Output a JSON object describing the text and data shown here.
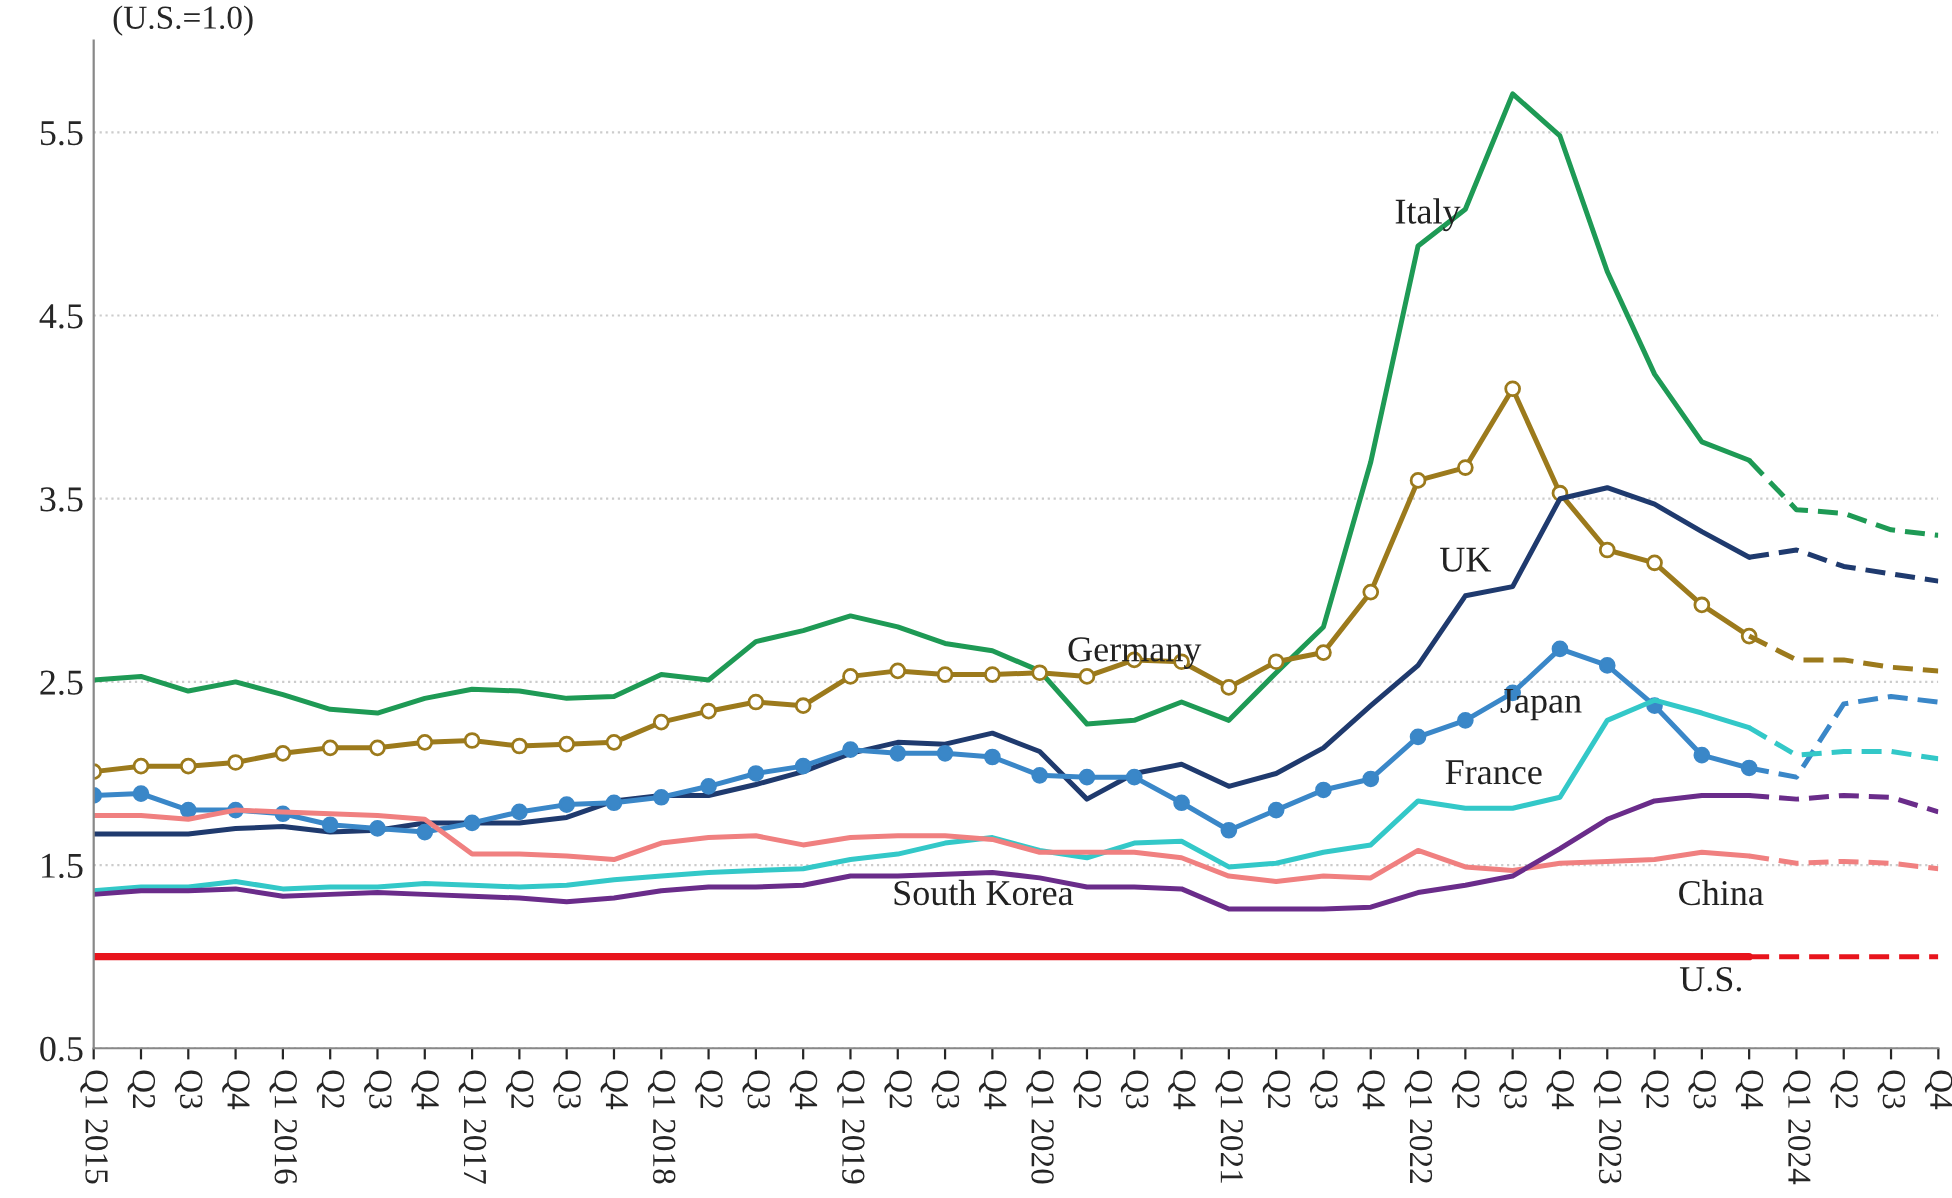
{
  "chart_data": {
    "type": "line",
    "ylabel": "(U.S.=1.0)",
    "categories": [
      "Q1 2015",
      "Q2",
      "Q3",
      "Q4",
      "Q1 2016",
      "Q2",
      "Q3",
      "Q4",
      "Q1 2017",
      "Q2",
      "Q3",
      "Q4",
      "Q1 2018",
      "Q2",
      "Q3",
      "Q4",
      "Q1 2019",
      "Q2",
      "Q3",
      "Q4",
      "Q1 2020",
      "Q2",
      "Q3",
      "Q4",
      "Q1 2021",
      "Q2",
      "Q3",
      "Q4",
      "Q1 2022",
      "Q2",
      "Q3",
      "Q4",
      "Q1 2023",
      "Q2",
      "Q3",
      "Q4",
      "Q1 2024",
      "Q2",
      "Q3",
      "Q4"
    ],
    "ylim": [
      0.5,
      6.0
    ],
    "yticks": [
      0.5,
      1.5,
      2.5,
      3.5,
      4.5,
      5.5
    ],
    "grid": "y",
    "legend": false,
    "series": [
      {
        "name": "Italy",
        "color": "#1e9a55",
        "marker": "none",
        "line_style": "solid",
        "values": [
          2.51,
          2.53,
          2.45,
          2.5,
          2.43,
          2.35,
          2.33,
          2.41,
          2.46,
          2.45,
          2.41,
          2.42,
          2.54,
          2.51,
          2.72,
          2.78,
          2.86,
          2.8,
          2.71,
          2.67,
          2.56,
          2.27,
          2.29,
          2.39,
          2.29,
          2.55,
          2.8,
          3.7,
          4.88,
          5.08,
          5.71,
          5.48,
          4.74,
          4.18,
          3.81,
          3.71,
          null,
          null,
          null,
          null
        ]
      },
      {
        "name": "Germany",
        "color": "#9c7a1c",
        "marker": "circle",
        "line_style": "solid",
        "values": [
          2.01,
          2.04,
          2.04,
          2.06,
          2.11,
          2.14,
          2.14,
          2.17,
          2.18,
          2.15,
          2.16,
          2.17,
          2.28,
          2.34,
          2.39,
          2.37,
          2.53,
          2.56,
          2.54,
          2.54,
          2.55,
          2.53,
          2.62,
          2.61,
          2.47,
          2.61,
          2.66,
          2.99,
          3.6,
          3.67,
          4.1,
          3.53,
          3.22,
          3.15,
          2.92,
          2.75,
          null,
          null,
          null,
          null
        ]
      },
      {
        "name": "UK",
        "color": "#1f3a6e",
        "marker": "none",
        "line_style": "solid",
        "values": [
          1.67,
          1.67,
          1.67,
          1.7,
          1.71,
          1.68,
          1.69,
          1.73,
          1.73,
          1.73,
          1.76,
          1.85,
          1.88,
          1.88,
          1.94,
          2.01,
          2.11,
          2.17,
          2.16,
          2.22,
          2.12,
          1.86,
          2.0,
          2.05,
          1.93,
          2.0,
          2.14,
          2.37,
          2.59,
          2.97,
          3.02,
          3.5,
          3.56,
          3.47,
          3.32,
          3.18,
          null,
          null,
          null,
          null
        ]
      },
      {
        "name": "Japan",
        "color": "#3a87c8",
        "marker": "circle",
        "line_style": "solid",
        "values": [
          1.88,
          1.89,
          1.8,
          1.8,
          1.78,
          1.72,
          1.7,
          1.68,
          1.73,
          1.79,
          1.83,
          1.84,
          1.87,
          1.93,
          2.0,
          2.04,
          2.13,
          2.11,
          2.11,
          2.09,
          1.99,
          1.98,
          1.98,
          1.84,
          1.69,
          1.8,
          1.91,
          1.97,
          2.2,
          2.29,
          2.44,
          2.68,
          2.59,
          2.37,
          2.1,
          2.03,
          null,
          null,
          null,
          null
        ]
      },
      {
        "name": "France",
        "color": "#33c8c8",
        "marker": "none",
        "line_style": "solid",
        "values": [
          1.36,
          1.38,
          1.38,
          1.41,
          1.37,
          1.38,
          1.38,
          1.4,
          1.39,
          1.38,
          1.39,
          1.42,
          1.44,
          1.46,
          1.47,
          1.48,
          1.53,
          1.56,
          1.62,
          1.65,
          1.58,
          1.54,
          1.62,
          1.63,
          1.49,
          1.51,
          1.57,
          1.61,
          1.85,
          1.81,
          1.81,
          1.87,
          2.29,
          2.4,
          2.33,
          2.25,
          null,
          null,
          null,
          null
        ]
      },
      {
        "name": "China",
        "color": "#f08080",
        "marker": "none",
        "line_style": "solid",
        "values": [
          1.77,
          1.77,
          1.75,
          1.8,
          1.79,
          1.78,
          1.77,
          1.75,
          1.56,
          1.56,
          1.55,
          1.53,
          1.62,
          1.65,
          1.66,
          1.61,
          1.65,
          1.66,
          1.66,
          1.64,
          1.57,
          1.57,
          1.57,
          1.54,
          1.44,
          1.41,
          1.44,
          1.43,
          1.58,
          1.49,
          1.47,
          1.51,
          1.52,
          1.53,
          1.57,
          1.55,
          null,
          null,
          null,
          null
        ]
      },
      {
        "name": "South Korea",
        "color": "#6a2c8a",
        "marker": "none",
        "line_style": "solid",
        "values": [
          1.34,
          1.36,
          1.36,
          1.37,
          1.33,
          1.34,
          1.35,
          1.34,
          1.33,
          1.32,
          1.3,
          1.32,
          1.36,
          1.38,
          1.38,
          1.39,
          1.44,
          1.44,
          1.45,
          1.46,
          1.43,
          1.38,
          1.38,
          1.37,
          1.26,
          1.26,
          1.26,
          1.27,
          1.35,
          1.39,
          1.44,
          1.59,
          1.75,
          1.85,
          1.88,
          1.88,
          null,
          null,
          null,
          null
        ]
      },
      {
        "name": "U.S.",
        "color": "#e8141c",
        "marker": "none",
        "line_style": "solid",
        "values": [
          1,
          1,
          1,
          1,
          1,
          1,
          1,
          1,
          1,
          1,
          1,
          1,
          1,
          1,
          1,
          1,
          1,
          1,
          1,
          1,
          1,
          1,
          1,
          1,
          1,
          1,
          1,
          1,
          1,
          1,
          1,
          1,
          1,
          1,
          1,
          1,
          null,
          null,
          null,
          null
        ]
      },
      {
        "color": "#1e9a55",
        "marker": "none",
        "line_style": "dashed",
        "values": [
          null,
          null,
          null,
          null,
          null,
          null,
          null,
          null,
          null,
          null,
          null,
          null,
          null,
          null,
          null,
          null,
          null,
          null,
          null,
          null,
          null,
          null,
          null,
          null,
          null,
          null,
          null,
          null,
          null,
          null,
          null,
          null,
          null,
          null,
          null,
          3.71,
          3.44,
          3.42,
          3.33,
          3.3
        ]
      },
      {
        "color": "#9c7a1c",
        "marker": "none",
        "line_style": "dashed",
        "values": [
          null,
          null,
          null,
          null,
          null,
          null,
          null,
          null,
          null,
          null,
          null,
          null,
          null,
          null,
          null,
          null,
          null,
          null,
          null,
          null,
          null,
          null,
          null,
          null,
          null,
          null,
          null,
          null,
          null,
          null,
          null,
          null,
          null,
          null,
          null,
          2.75,
          2.62,
          2.62,
          2.58,
          2.56
        ]
      },
      {
        "color": "#1f3a6e",
        "marker": "none",
        "line_style": "dashed",
        "values": [
          null,
          null,
          null,
          null,
          null,
          null,
          null,
          null,
          null,
          null,
          null,
          null,
          null,
          null,
          null,
          null,
          null,
          null,
          null,
          null,
          null,
          null,
          null,
          null,
          null,
          null,
          null,
          null,
          null,
          null,
          null,
          null,
          null,
          null,
          null,
          3.18,
          3.22,
          3.13,
          3.09,
          3.05
        ]
      },
      {
        "color": "#3a87c8",
        "marker": "none",
        "line_style": "dashed",
        "values": [
          null,
          null,
          null,
          null,
          null,
          null,
          null,
          null,
          null,
          null,
          null,
          null,
          null,
          null,
          null,
          null,
          null,
          null,
          null,
          null,
          null,
          null,
          null,
          null,
          null,
          null,
          null,
          null,
          null,
          null,
          null,
          null,
          null,
          null,
          null,
          2.03,
          1.98,
          2.38,
          2.42,
          2.39
        ]
      },
      {
        "color": "#33c8c8",
        "marker": "none",
        "line_style": "dashed",
        "values": [
          null,
          null,
          null,
          null,
          null,
          null,
          null,
          null,
          null,
          null,
          null,
          null,
          null,
          null,
          null,
          null,
          null,
          null,
          null,
          null,
          null,
          null,
          null,
          null,
          null,
          null,
          null,
          null,
          null,
          null,
          null,
          null,
          null,
          null,
          null,
          2.25,
          2.1,
          2.12,
          2.12,
          2.08
        ]
      },
      {
        "color": "#f08080",
        "marker": "none",
        "line_style": "dashed",
        "values": [
          null,
          null,
          null,
          null,
          null,
          null,
          null,
          null,
          null,
          null,
          null,
          null,
          null,
          null,
          null,
          null,
          null,
          null,
          null,
          null,
          null,
          null,
          null,
          null,
          null,
          null,
          null,
          null,
          null,
          null,
          null,
          null,
          null,
          null,
          null,
          1.55,
          1.51,
          1.52,
          1.51,
          1.48
        ]
      },
      {
        "color": "#6a2c8a",
        "marker": "none",
        "line_style": "dashed",
        "values": [
          null,
          null,
          null,
          null,
          null,
          null,
          null,
          null,
          null,
          null,
          null,
          null,
          null,
          null,
          null,
          null,
          null,
          null,
          null,
          null,
          null,
          null,
          null,
          null,
          null,
          null,
          null,
          null,
          null,
          null,
          null,
          null,
          null,
          null,
          null,
          1.88,
          1.86,
          1.88,
          1.87,
          1.79
        ]
      },
      {
        "color": "#e8141c",
        "marker": "none",
        "line_style": "dashed",
        "values": [
          null,
          null,
          null,
          null,
          null,
          null,
          null,
          null,
          null,
          null,
          null,
          null,
          null,
          null,
          null,
          null,
          null,
          null,
          null,
          null,
          null,
          null,
          null,
          null,
          null,
          null,
          null,
          null,
          null,
          null,
          null,
          null,
          null,
          null,
          null,
          1,
          1,
          1,
          1,
          1
        ]
      }
    ]
  }
}
